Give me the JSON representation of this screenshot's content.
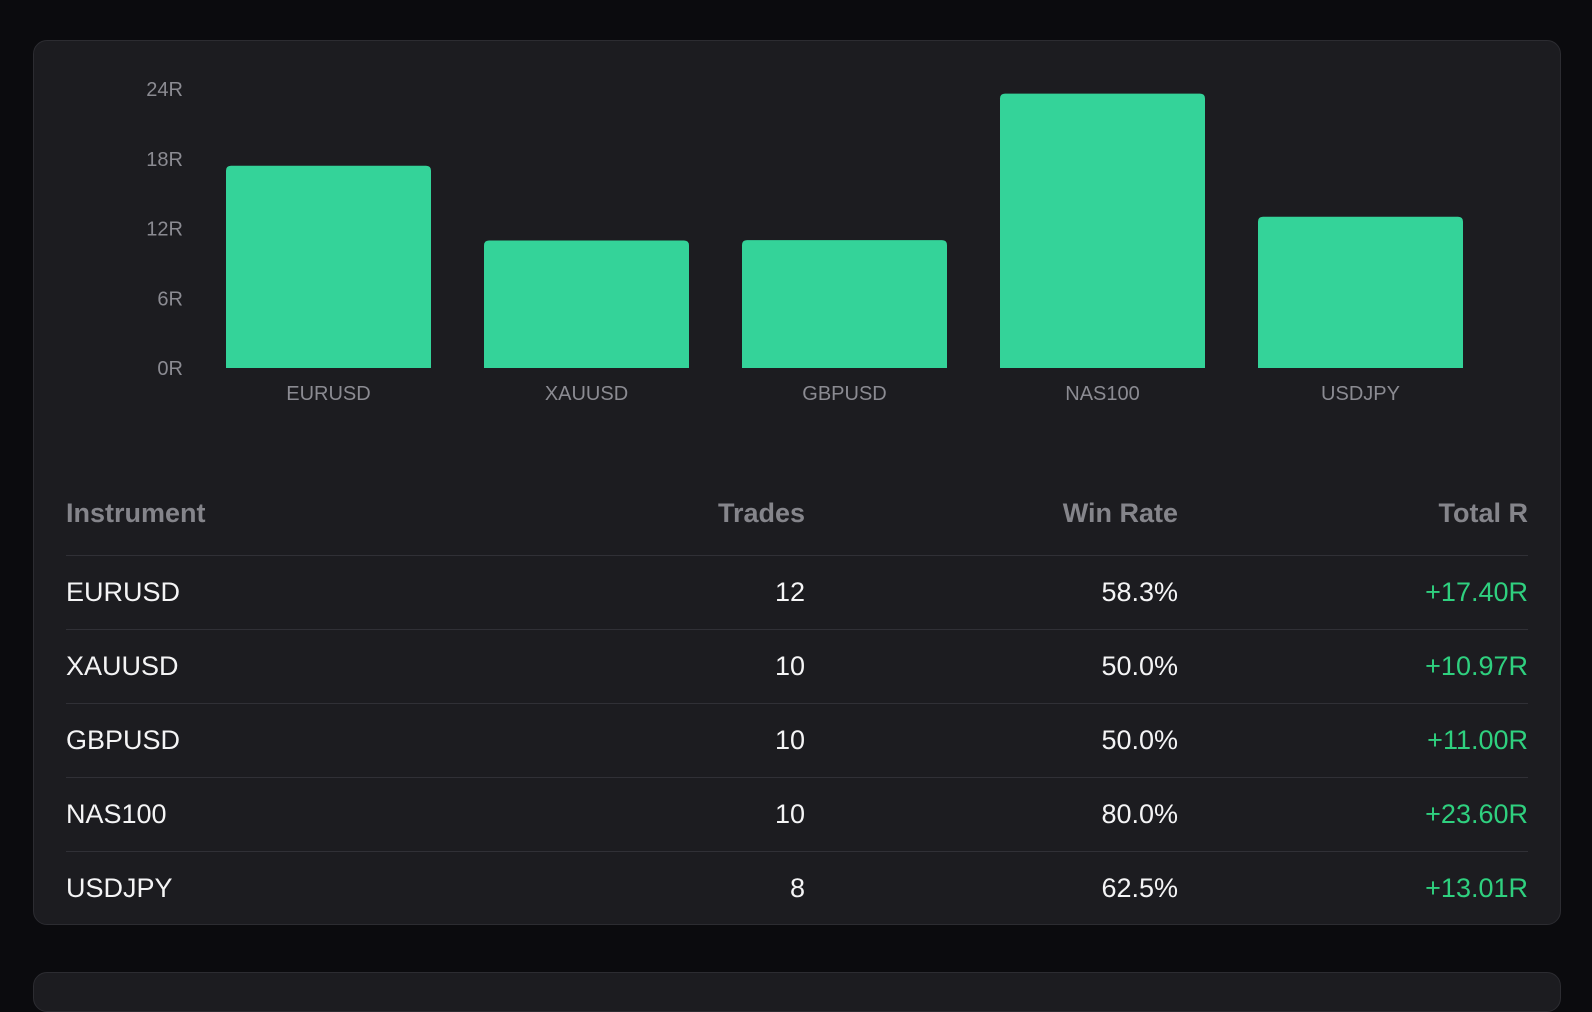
{
  "colors": {
    "background": "#0b0b0e",
    "card": "#1c1c20",
    "bar": "#34d399",
    "positive": "#2fd07f",
    "axis_text": "#8b8b92"
  },
  "chart_data": {
    "type": "bar",
    "categories": [
      "EURUSD",
      "XAUUSD",
      "GBPUSD",
      "NAS100",
      "USDJPY"
    ],
    "values": [
      17.4,
      10.97,
      11.0,
      23.6,
      13.01
    ],
    "yticks": [
      "0R",
      "6R",
      "12R",
      "18R",
      "24R"
    ],
    "ytick_values": [
      0,
      6,
      12,
      18,
      24
    ],
    "ylim": [
      0,
      24
    ],
    "grid": false,
    "legend": "none",
    "title": "",
    "xlabel": "",
    "ylabel": ""
  },
  "table": {
    "headers": {
      "instrument": "Instrument",
      "trades": "Trades",
      "win_rate": "Win Rate",
      "total_r": "Total R"
    },
    "rows": [
      {
        "instrument": "EURUSD",
        "trades": "12",
        "win_rate": "58.3%",
        "total_r": "+17.40R"
      },
      {
        "instrument": "XAUUSD",
        "trades": "10",
        "win_rate": "50.0%",
        "total_r": "+10.97R"
      },
      {
        "instrument": "GBPUSD",
        "trades": "10",
        "win_rate": "50.0%",
        "total_r": "+11.00R"
      },
      {
        "instrument": "NAS100",
        "trades": "10",
        "win_rate": "80.0%",
        "total_r": "+23.60R"
      },
      {
        "instrument": "USDJPY",
        "trades": "8",
        "win_rate": "62.5%",
        "total_r": "+13.01R"
      }
    ]
  }
}
